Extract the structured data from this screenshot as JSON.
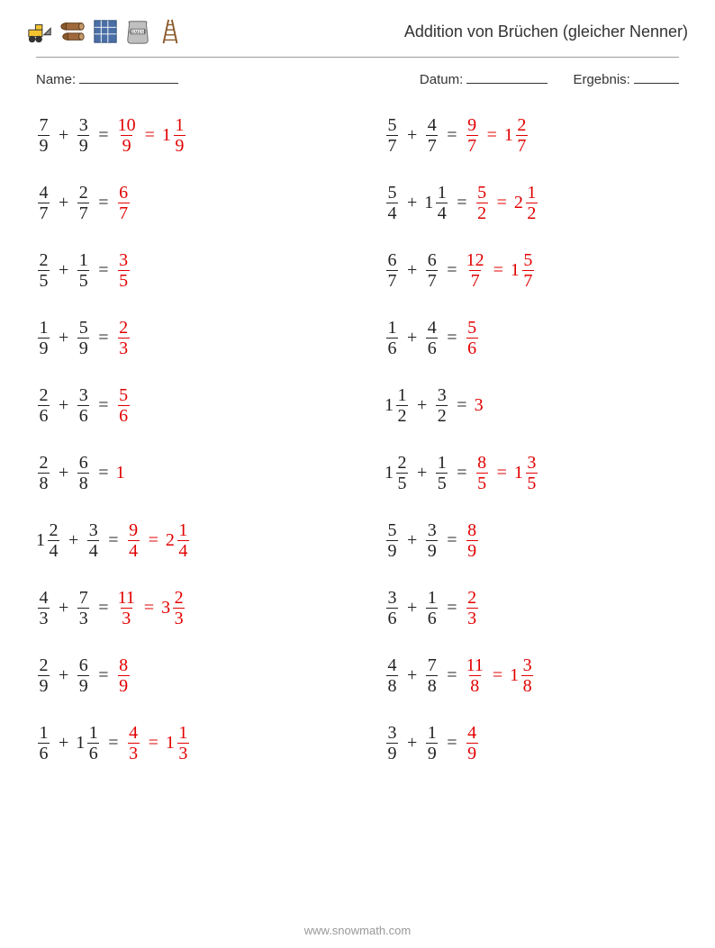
{
  "header": {
    "title": "Addition von Brüchen (gleicher Nenner)"
  },
  "meta": {
    "name_label": "Name:",
    "date_label": "Datum:",
    "result_label": "Ergebnis:"
  },
  "footer": "www.snowmath.com",
  "colors": {
    "answer": "#e20000",
    "text": "#222222",
    "background": "#ffffff"
  },
  "problems": [
    {
      "a": {
        "n": "7",
        "d": "9"
      },
      "b": {
        "n": "3",
        "d": "9"
      },
      "ans": [
        {
          "type": "frac",
          "n": "10",
          "d": "9"
        },
        {
          "type": "mixed",
          "w": "1",
          "n": "1",
          "d": "9"
        }
      ]
    },
    {
      "a": {
        "n": "5",
        "d": "7"
      },
      "b": {
        "n": "4",
        "d": "7"
      },
      "ans": [
        {
          "type": "frac",
          "n": "9",
          "d": "7"
        },
        {
          "type": "mixed",
          "w": "1",
          "n": "2",
          "d": "7"
        }
      ]
    },
    {
      "a": {
        "n": "4",
        "d": "7"
      },
      "b": {
        "n": "2",
        "d": "7"
      },
      "ans": [
        {
          "type": "frac",
          "n": "6",
          "d": "7"
        }
      ]
    },
    {
      "a": {
        "n": "5",
        "d": "4"
      },
      "b": {
        "w": "1",
        "n": "1",
        "d": "4"
      },
      "ans": [
        {
          "type": "frac",
          "n": "5",
          "d": "2"
        },
        {
          "type": "mixed",
          "w": "2",
          "n": "1",
          "d": "2"
        }
      ]
    },
    {
      "a": {
        "n": "2",
        "d": "5"
      },
      "b": {
        "n": "1",
        "d": "5"
      },
      "ans": [
        {
          "type": "frac",
          "n": "3",
          "d": "5"
        }
      ]
    },
    {
      "a": {
        "n": "6",
        "d": "7"
      },
      "b": {
        "n": "6",
        "d": "7"
      },
      "ans": [
        {
          "type": "frac",
          "n": "12",
          "d": "7"
        },
        {
          "type": "mixed",
          "w": "1",
          "n": "5",
          "d": "7"
        }
      ]
    },
    {
      "a": {
        "n": "1",
        "d": "9"
      },
      "b": {
        "n": "5",
        "d": "9"
      },
      "ans": [
        {
          "type": "frac",
          "n": "2",
          "d": "3"
        }
      ]
    },
    {
      "a": {
        "n": "1",
        "d": "6"
      },
      "b": {
        "n": "4",
        "d": "6"
      },
      "ans": [
        {
          "type": "frac",
          "n": "5",
          "d": "6"
        }
      ]
    },
    {
      "a": {
        "n": "2",
        "d": "6"
      },
      "b": {
        "n": "3",
        "d": "6"
      },
      "ans": [
        {
          "type": "frac",
          "n": "5",
          "d": "6"
        }
      ]
    },
    {
      "a": {
        "w": "1",
        "n": "1",
        "d": "2"
      },
      "b": {
        "n": "3",
        "d": "2"
      },
      "ans": [
        {
          "type": "int",
          "v": "3"
        }
      ]
    },
    {
      "a": {
        "n": "2",
        "d": "8"
      },
      "b": {
        "n": "6",
        "d": "8"
      },
      "ans": [
        {
          "type": "int",
          "v": "1"
        }
      ]
    },
    {
      "a": {
        "w": "1",
        "n": "2",
        "d": "5"
      },
      "b": {
        "n": "1",
        "d": "5"
      },
      "ans": [
        {
          "type": "frac",
          "n": "8",
          "d": "5"
        },
        {
          "type": "mixed",
          "w": "1",
          "n": "3",
          "d": "5"
        }
      ]
    },
    {
      "a": {
        "w": "1",
        "n": "2",
        "d": "4"
      },
      "b": {
        "n": "3",
        "d": "4"
      },
      "ans": [
        {
          "type": "frac",
          "n": "9",
          "d": "4"
        },
        {
          "type": "mixed",
          "w": "2",
          "n": "1",
          "d": "4"
        }
      ]
    },
    {
      "a": {
        "n": "5",
        "d": "9"
      },
      "b": {
        "n": "3",
        "d": "9"
      },
      "ans": [
        {
          "type": "frac",
          "n": "8",
          "d": "9"
        }
      ]
    },
    {
      "a": {
        "n": "4",
        "d": "3"
      },
      "b": {
        "n": "7",
        "d": "3"
      },
      "ans": [
        {
          "type": "frac",
          "n": "11",
          "d": "3"
        },
        {
          "type": "mixed",
          "w": "3",
          "n": "2",
          "d": "3"
        }
      ]
    },
    {
      "a": {
        "n": "3",
        "d": "6"
      },
      "b": {
        "n": "1",
        "d": "6"
      },
      "ans": [
        {
          "type": "frac",
          "n": "2",
          "d": "3"
        }
      ]
    },
    {
      "a": {
        "n": "2",
        "d": "9"
      },
      "b": {
        "n": "6",
        "d": "9"
      },
      "ans": [
        {
          "type": "frac",
          "n": "8",
          "d": "9"
        }
      ]
    },
    {
      "a": {
        "n": "4",
        "d": "8"
      },
      "b": {
        "n": "7",
        "d": "8"
      },
      "ans": [
        {
          "type": "frac",
          "n": "11",
          "d": "8"
        },
        {
          "type": "mixed",
          "w": "1",
          "n": "3",
          "d": "8"
        }
      ]
    },
    {
      "a": {
        "n": "1",
        "d": "6"
      },
      "b": {
        "w": "1",
        "n": "1",
        "d": "6"
      },
      "ans": [
        {
          "type": "frac",
          "n": "4",
          "d": "3"
        },
        {
          "type": "mixed",
          "w": "1",
          "n": "1",
          "d": "3"
        }
      ]
    },
    {
      "a": {
        "n": "3",
        "d": "9"
      },
      "b": {
        "n": "1",
        "d": "9"
      },
      "ans": [
        {
          "type": "frac",
          "n": "4",
          "d": "9"
        }
      ]
    }
  ]
}
